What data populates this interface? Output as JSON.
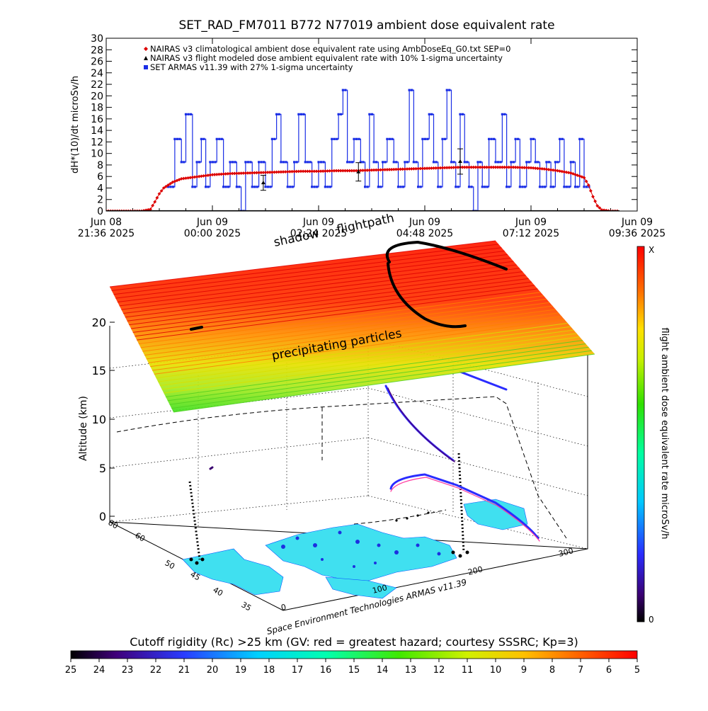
{
  "chart_data": [
    {
      "type": "line",
      "title": "SET_RAD_FM7011  B772 N77019 ambient dose equivalent rate",
      "ylabel": "dH*(10)/dt microSv/h",
      "ylim": [
        0,
        30
      ],
      "yticks": [
        "0",
        "2",
        "4",
        "6",
        "8",
        "10",
        "12",
        "14",
        "16",
        "18",
        "20",
        "22",
        "24",
        "26",
        "28",
        "30"
      ],
      "xlim_hours": [
        0,
        12
      ],
      "xticks": [
        {
          "t": 0.0,
          "line1": "Jun 08",
          "line2": "21:36 2025"
        },
        {
          "t": 2.4,
          "line1": "Jun 09",
          "line2": "00:00 2025"
        },
        {
          "t": 4.8,
          "line1": "Jun 09",
          "line2": "02:24 2025"
        },
        {
          "t": 7.2,
          "line1": "Jun 09",
          "line2": "04:48 2025"
        },
        {
          "t": 9.6,
          "line1": "Jun 09",
          "line2": "07:12 2025"
        },
        {
          "t": 12.0,
          "line1": "Jun 09",
          "line2": "09:36 2025"
        }
      ],
      "legend": [
        {
          "marker": "diamond",
          "color": "#dd0000",
          "label": "NAIRAS v3 climatological ambient dose equivalent rate using AmbDoseEq_G0.txt SEP=0"
        },
        {
          "marker": "triangle",
          "color": "#000000",
          "label": "NAIRAS v3 flight modeled dose ambient equivalent rate with 10% 1-sigma uncertainty"
        },
        {
          "marker": "square",
          "color": "#1a2ee6",
          "label": "SET ARMAS v11.39 with 27% 1-sigma uncertainty"
        }
      ],
      "legend_position": "top-left",
      "series": [
        {
          "name": "NAIRAS v3 climatological ambient dose equivalent rate using AmbDoseEq_G0.txt SEP=0",
          "color": "#dd0000",
          "x": [
            0.0,
            0.4,
            0.8,
            1.0,
            1.1,
            1.2,
            1.3,
            1.5,
            1.7,
            2.0,
            2.4,
            2.8,
            3.2,
            3.6,
            4.0,
            4.4,
            4.8,
            5.2,
            5.6,
            6.0,
            6.4,
            6.8,
            7.2,
            7.6,
            8.0,
            8.4,
            8.8,
            9.2,
            9.6,
            9.9,
            10.2,
            10.5,
            10.8,
            10.9,
            11.0,
            11.1,
            11.2,
            11.4,
            11.6
          ],
          "y": [
            0,
            0,
            0,
            0.3,
            1.6,
            3.0,
            4.0,
            5.0,
            5.6,
            5.9,
            6.3,
            6.5,
            6.6,
            6.7,
            6.8,
            6.9,
            6.9,
            7.0,
            7.0,
            7.1,
            7.2,
            7.3,
            7.4,
            7.5,
            7.6,
            7.6,
            7.6,
            7.6,
            7.5,
            7.3,
            7.0,
            6.6,
            5.8,
            4.5,
            2.5,
            0.9,
            0.2,
            0,
            0
          ]
        },
        {
          "name": "NAIRAS v3 flight modeled dose ambient equivalent rate with 10% 1-sigma uncertainty",
          "color": "#000000",
          "x": [
            0.0,
            1.0,
            2.0,
            3.0,
            4.0,
            5.0,
            6.0,
            7.0,
            8.0,
            9.0,
            10.0,
            11.0,
            11.6
          ],
          "y": [
            0,
            0,
            0,
            0,
            0,
            0,
            0,
            0,
            0,
            0,
            0,
            0,
            0
          ],
          "error_bars": [
            {
              "x": 3.55,
              "y": 4.9,
              "err": 1.3
            },
            {
              "x": 5.7,
              "y": 6.8,
              "err": 1.6
            },
            {
              "x": 8.0,
              "y": 8.6,
              "err": 2.2
            }
          ]
        },
        {
          "name": "SET ARMAS v11.39 with 27% 1-sigma uncertainty",
          "color": "#1a2ee6",
          "x": [
            1.4,
            1.55,
            1.7,
            1.8,
            1.95,
            2.05,
            2.15,
            2.25,
            2.35,
            2.5,
            2.65,
            2.8,
            2.95,
            3.05,
            3.15,
            3.3,
            3.45,
            3.6,
            3.75,
            3.85,
            3.95,
            4.1,
            4.25,
            4.35,
            4.5,
            4.65,
            4.8,
            4.95,
            5.1,
            5.25,
            5.35,
            5.45,
            5.6,
            5.75,
            5.85,
            5.95,
            6.05,
            6.15,
            6.25,
            6.35,
            6.5,
            6.6,
            6.75,
            6.85,
            6.95,
            7.05,
            7.15,
            7.3,
            7.4,
            7.5,
            7.6,
            7.7,
            7.8,
            7.9,
            8.0,
            8.1,
            8.2,
            8.3,
            8.4,
            8.5,
            8.65,
            8.8,
            8.95,
            9.05,
            9.15,
            9.25,
            9.35,
            9.5,
            9.6,
            9.7,
            9.8,
            9.95,
            10.05,
            10.15,
            10.25,
            10.35,
            10.5,
            10.6,
            10.7,
            10.8
          ],
          "y": [
            4.2,
            12.5,
            8.5,
            16.8,
            4.2,
            8.5,
            12.5,
            4.2,
            8.5,
            12.5,
            4.2,
            8.5,
            4.2,
            0,
            8.5,
            4.2,
            8.5,
            4.2,
            12.5,
            16.8,
            8.5,
            4.2,
            8.5,
            16.8,
            8.5,
            4.2,
            8.5,
            4.2,
            12.5,
            16.8,
            21,
            8.5,
            12.5,
            8.5,
            4.2,
            16.8,
            8.5,
            4.2,
            8.5,
            12.5,
            8.5,
            4.2,
            8.5,
            21,
            8.5,
            4.2,
            12.5,
            16.8,
            8.5,
            4.2,
            12.5,
            21,
            8.5,
            4.2,
            16.8,
            8.5,
            4.2,
            0,
            8.5,
            4.2,
            12.5,
            8.5,
            16.8,
            4.2,
            8.5,
            12.5,
            4.2,
            8.5,
            12.5,
            8.5,
            4.2,
            8.5,
            4.2,
            8.5,
            12.5,
            4.2,
            8.5,
            4.2,
            12.5,
            4.2
          ]
        }
      ]
    },
    {
      "type": "scatter",
      "ylabel": "Altitude (km)",
      "zticks": [
        "0",
        "5",
        "10",
        "15",
        "20"
      ],
      "x_axis_ticks": [
        "0",
        "100",
        "200",
        "300"
      ],
      "lat_ticks": [
        "35",
        "40",
        "45",
        "50",
        "60",
        "80"
      ],
      "annotations": {
        "flightpath": "flightpath",
        "shadow": "shadow",
        "precipitating": "precipitating particles",
        "credit": "Space Environment Technologies ARMAS v11.39"
      },
      "colorbar_label": "flight ambient dose equivalent rate microSv/h",
      "colorbar_top": "X",
      "colorbar_bottom": "0"
    },
    {
      "type": "heatmap",
      "title": "Cutoff rigidity (Rc) >25 km (GV: red = greatest hazard; courtesy SSSRC; Kp=3)",
      "ticks": [
        "25",
        "24",
        "23",
        "22",
        "21",
        "20",
        "19",
        "18",
        "17",
        "16",
        "15",
        "14",
        "13",
        "12",
        "11",
        "10",
        "9",
        "8",
        "7",
        "6",
        "5"
      ]
    }
  ]
}
